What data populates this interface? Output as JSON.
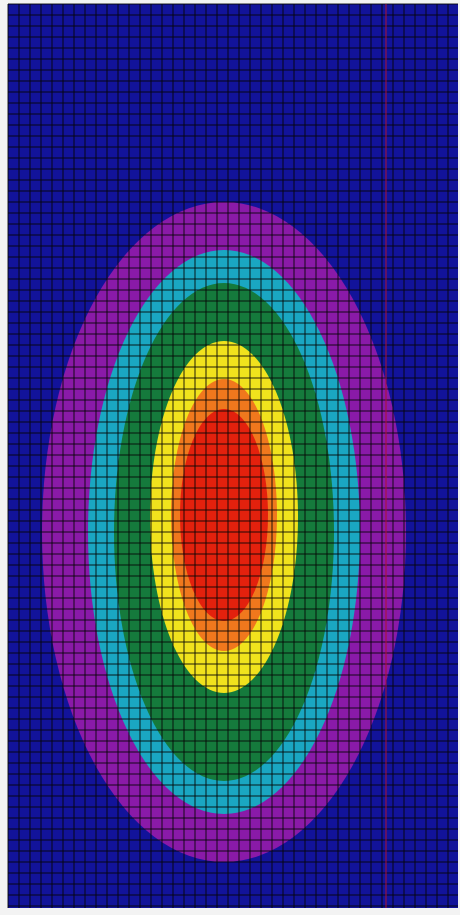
{
  "chart_data": {
    "type": "heatmap",
    "title": "",
    "xlabel": "",
    "ylabel": "",
    "grid": true,
    "levels": [
      {
        "rank": 0,
        "color": "#12139a"
      },
      {
        "rank": 1,
        "color": "#8a1aa8"
      },
      {
        "rank": 2,
        "color": "#1aa7c2"
      },
      {
        "rank": 3,
        "color": "#157a3c"
      },
      {
        "rank": 4,
        "color": "#f1e21d"
      },
      {
        "rank": 5,
        "color": "#f0781d"
      },
      {
        "rank": 6,
        "color": "#e3210d"
      }
    ]
  },
  "colors": {
    "background": "#12139a",
    "grid_line": "#050505",
    "outer_margin": "#f3f3f3",
    "edge_line": "#b01030"
  }
}
